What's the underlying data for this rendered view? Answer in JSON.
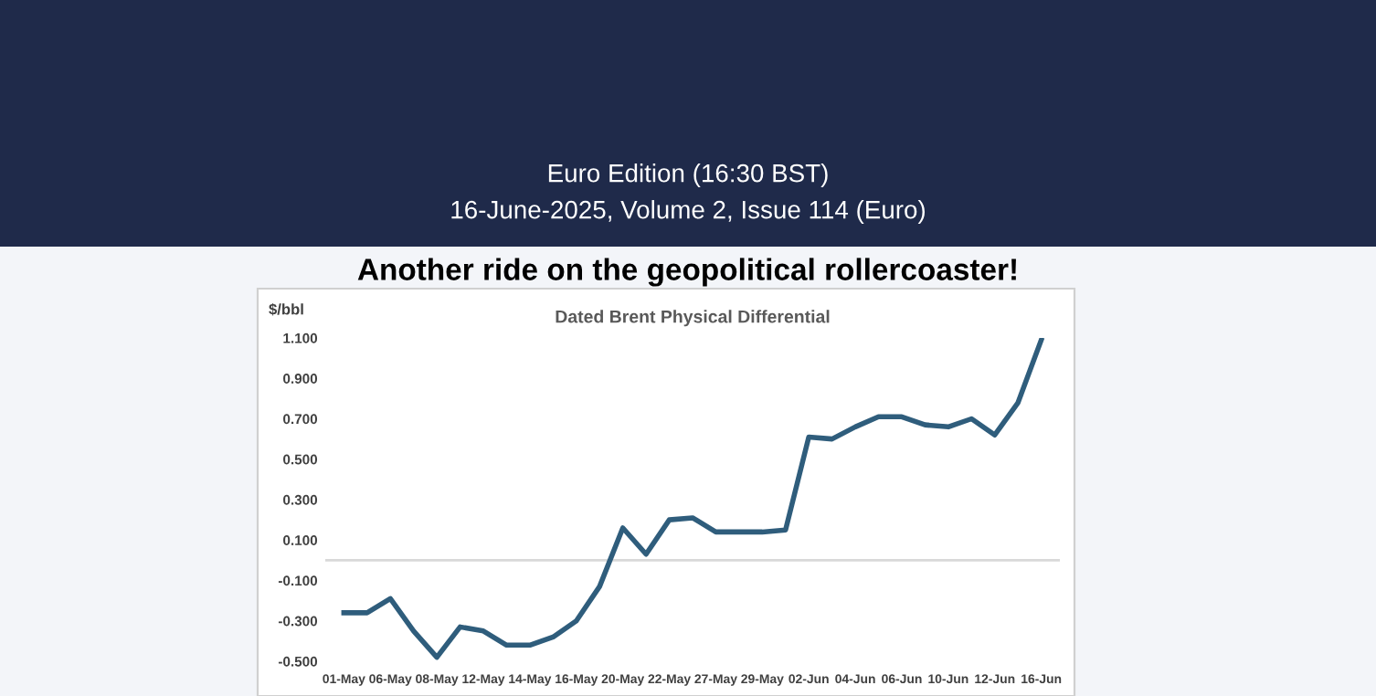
{
  "chart_data": {
    "type": "line",
    "title": "Dated Brent Physical Differential",
    "ylabel": "$/bbl",
    "annotations": [
      "Euro Edition (16:30 BST)",
      "16-June-2025, Volume 2, Issue 114 (Euro)",
      "Another ride on the geopolitical rollercoaster!"
    ],
    "categories": [
      "01-May",
      null,
      "06-May",
      null,
      "08-May",
      null,
      "12-May",
      null,
      "14-May",
      null,
      "16-May",
      null,
      "20-May",
      null,
      "22-May",
      null,
      "27-May",
      null,
      "29-May",
      null,
      "02-Jun",
      null,
      "04-Jun",
      null,
      "06-Jun",
      null,
      "10-Jun",
      null,
      "12-Jun",
      null,
      "16-Jun"
    ],
    "series": [
      {
        "color": "#2f5d7c",
        "values": [
          -0.26,
          -0.26,
          -0.19,
          -0.35,
          -0.48,
          -0.33,
          -0.35,
          -0.42,
          -0.42,
          -0.38,
          -0.3,
          -0.13,
          0.16,
          0.03,
          0.2,
          0.21,
          0.14,
          0.14,
          0.14,
          0.15,
          0.61,
          0.6,
          0.66,
          0.71,
          0.71,
          0.67,
          0.66,
          0.7,
          0.62,
          0.78,
          1.09
        ]
      }
    ],
    "ylim": [
      -0.5,
      1.1
    ],
    "yticks": [
      {
        "value": -0.5,
        "label": "-0.500"
      },
      {
        "value": -0.3,
        "label": "-0.300"
      },
      {
        "value": -0.1,
        "label": "-0.100"
      },
      {
        "value": 0.1,
        "label": "0.100"
      },
      {
        "value": 0.3,
        "label": "0.300"
      },
      {
        "value": 0.5,
        "label": "0.500"
      },
      {
        "value": 0.7,
        "label": "0.700"
      },
      {
        "value": 0.9,
        "label": "0.900"
      },
      {
        "value": 1.1,
        "label": "1.100"
      }
    ],
    "ref_lines": [
      {
        "axis": "y",
        "value": 0,
        "color": "#d9d9d9"
      }
    ],
    "grid": false,
    "legend": false,
    "marker": "none",
    "line_style": "solid"
  }
}
